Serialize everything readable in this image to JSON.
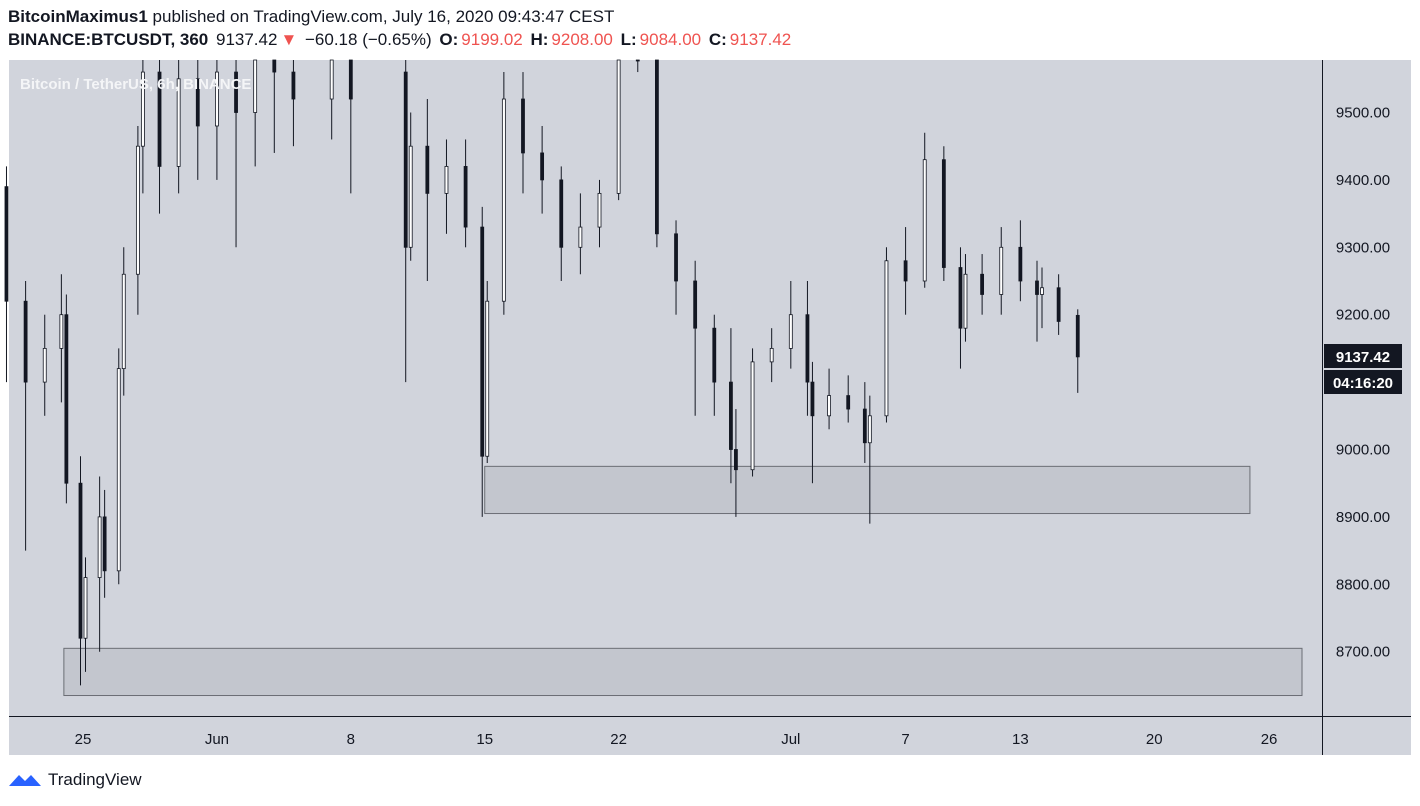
{
  "header": {
    "publisher": "BitcoinMaximus1",
    "published_text": "published on TradingView.com, July 16, 2020 09:43:47 CEST",
    "symbol": "BINANCE:BTCUSDT, 360",
    "last": "9137.42",
    "change_arrow": "▼",
    "change": "−60.18 (−0.65%)",
    "o_label": "O:",
    "o_val": "9199.02",
    "h_label": "H:",
    "h_val": "9208.00",
    "l_label": "L:",
    "l_val": "9084.00",
    "c_label": "C:",
    "c_val": "9137.42"
  },
  "footer": {
    "brand": "TradingView",
    "logo_icon": "tradingview-logo-icon"
  },
  "colors": {
    "background": "#d1d4dc",
    "candle": "#131722",
    "zone_fill": "#c3c6ce",
    "zone_stroke": "#6b6e75",
    "tag_bg": "#131722",
    "down": "#ef5350"
  },
  "chart_data": {
    "type": "candlestick",
    "title": "Bitcoin / TetherUS, 6h, BINANCE",
    "ylim": [
      8600,
      9580
    ],
    "y_ticks": [
      "9500.00",
      "9400.00",
      "9300.00",
      "9200.00",
      "9100.00",
      "9000.00",
      "8900.00",
      "8800.00",
      "8700.00"
    ],
    "x_ticks": [
      {
        "label": "25",
        "date": "2020-05-25"
      },
      {
        "label": "Jun",
        "date": "2020-06-01"
      },
      {
        "label": "8",
        "date": "2020-06-08"
      },
      {
        "label": "15",
        "date": "2020-06-15"
      },
      {
        "label": "22",
        "date": "2020-06-22"
      },
      {
        "label": "Jul",
        "date": "2020-07-01"
      },
      {
        "label": "7",
        "date": "2020-07-07"
      },
      {
        "label": "13",
        "date": "2020-07-13"
      },
      {
        "label": "20",
        "date": "2020-07-20"
      },
      {
        "label": "26",
        "date": "2020-07-26"
      }
    ],
    "price_tag": "9137.42",
    "timer_tag": "04:16:20",
    "zones": [
      {
        "from": "2020-06-15",
        "to": "2020-07-25",
        "low": 8905,
        "high": 8975
      },
      {
        "from": "2020-05-24",
        "to": "2020-07-28",
        "low": 8635,
        "high": 8705
      }
    ],
    "candles": [
      [
        "2020-05-20",
        9470,
        9520,
        9300,
        9390
      ],
      [
        "2020-05-21",
        9390,
        9420,
        9100,
        9220
      ],
      [
        "2020-05-22",
        9220,
        9250,
        8850,
        9100
      ],
      [
        "2020-05-23",
        9100,
        9200,
        9050,
        9150
      ],
      [
        "2020-05-24",
        9150,
        9260,
        9070,
        9200
      ],
      [
        "2020-05-24",
        9200,
        9230,
        8920,
        8950
      ],
      [
        "2020-05-25",
        8950,
        8990,
        8650,
        8720
      ],
      [
        "2020-05-25",
        8720,
        8840,
        8670,
        8810
      ],
      [
        "2020-05-26",
        8810,
        8960,
        8700,
        8900
      ],
      [
        "2020-05-26",
        8900,
        8940,
        8780,
        8820
      ],
      [
        "2020-05-27",
        8820,
        9150,
        8800,
        9120
      ],
      [
        "2020-05-27",
        9120,
        9300,
        9080,
        9260
      ],
      [
        "2020-05-28",
        9260,
        9480,
        9200,
        9450
      ],
      [
        "2020-05-28",
        9450,
        9600,
        9380,
        9560
      ],
      [
        "2020-05-29",
        9560,
        9620,
        9350,
        9420
      ],
      [
        "2020-05-30",
        9420,
        9600,
        9380,
        9550
      ],
      [
        "2020-05-31",
        9550,
        9620,
        9400,
        9480
      ],
      [
        "2020-06-01",
        9480,
        9620,
        9400,
        9560
      ],
      [
        "2020-06-02",
        9560,
        9650,
        9300,
        9500
      ],
      [
        "2020-06-03",
        9500,
        9650,
        9420,
        9580
      ],
      [
        "2020-06-04",
        9580,
        9640,
        9440,
        9560
      ],
      [
        "2020-06-05",
        9560,
        9620,
        9450,
        9520
      ],
      [
        "2020-06-07",
        9520,
        9620,
        9460,
        9600
      ],
      [
        "2020-06-08",
        9600,
        9640,
        9380,
        9520
      ],
      [
        "2020-06-11",
        9560,
        9600,
        9100,
        9300
      ],
      [
        "2020-06-11",
        9300,
        9500,
        9280,
        9450
      ],
      [
        "2020-06-12",
        9450,
        9520,
        9250,
        9380
      ],
      [
        "2020-06-13",
        9380,
        9460,
        9320,
        9420
      ],
      [
        "2020-06-14",
        9420,
        9460,
        9300,
        9330
      ],
      [
        "2020-06-15",
        9330,
        9360,
        8900,
        8990
      ],
      [
        "2020-06-15",
        8990,
        9250,
        8980,
        9220
      ],
      [
        "2020-06-16",
        9220,
        9560,
        9200,
        9520
      ],
      [
        "2020-06-17",
        9520,
        9560,
        9380,
        9440
      ],
      [
        "2020-06-18",
        9440,
        9480,
        9350,
        9400
      ],
      [
        "2020-06-19",
        9400,
        9420,
        9250,
        9300
      ],
      [
        "2020-06-20",
        9300,
        9380,
        9260,
        9330
      ],
      [
        "2020-06-21",
        9330,
        9400,
        9300,
        9380
      ],
      [
        "2020-06-22",
        9380,
        9700,
        9370,
        9640
      ],
      [
        "2020-06-23",
        9640,
        9680,
        9560,
        9600
      ],
      [
        "2020-06-24",
        9600,
        9620,
        9300,
        9320
      ],
      [
        "2020-06-25",
        9320,
        9340,
        9200,
        9250
      ],
      [
        "2020-06-26",
        9250,
        9280,
        9050,
        9180
      ],
      [
        "2020-06-27",
        9180,
        9200,
        9050,
        9100
      ],
      [
        "2020-06-28",
        9100,
        9180,
        8950,
        9000
      ],
      [
        "2020-06-28",
        9000,
        9060,
        8900,
        8970
      ],
      [
        "2020-06-29",
        8970,
        9150,
        8960,
        9130
      ],
      [
        "2020-06-30",
        9130,
        9180,
        9100,
        9150
      ],
      [
        "2020-07-01",
        9150,
        9250,
        9120,
        9200
      ],
      [
        "2020-07-02",
        9200,
        9250,
        9050,
        9100
      ],
      [
        "2020-07-02",
        9100,
        9130,
        8950,
        9050
      ],
      [
        "2020-07-03",
        9050,
        9120,
        9030,
        9080
      ],
      [
        "2020-07-04",
        9080,
        9110,
        9040,
        9060
      ],
      [
        "2020-07-05",
        9060,
        9100,
        8980,
        9010
      ],
      [
        "2020-07-05",
        9010,
        9080,
        8890,
        9050
      ],
      [
        "2020-07-06",
        9050,
        9300,
        9040,
        9280
      ],
      [
        "2020-07-07",
        9280,
        9330,
        9200,
        9250
      ],
      [
        "2020-07-08",
        9250,
        9470,
        9240,
        9430
      ],
      [
        "2020-07-09",
        9430,
        9450,
        9250,
        9270
      ],
      [
        "2020-07-10",
        9270,
        9300,
        9120,
        9180
      ],
      [
        "2020-07-10",
        9180,
        9290,
        9160,
        9260
      ],
      [
        "2020-07-11",
        9260,
        9290,
        9200,
        9230
      ],
      [
        "2020-07-12",
        9230,
        9330,
        9200,
        9300
      ],
      [
        "2020-07-13",
        9300,
        9340,
        9220,
        9250
      ],
      [
        "2020-07-14",
        9250,
        9280,
        9160,
        9230
      ],
      [
        "2020-07-14",
        9230,
        9270,
        9180,
        9240
      ],
      [
        "2020-07-15",
        9240,
        9260,
        9170,
        9190
      ],
      [
        "2020-07-16",
        9199.02,
        9208,
        9084,
        9137.42
      ]
    ]
  }
}
